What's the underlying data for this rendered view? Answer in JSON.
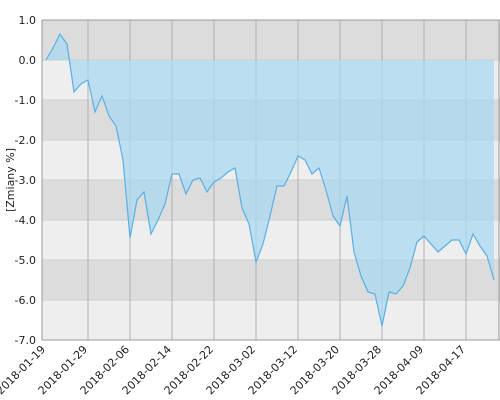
{
  "chart_data": {
    "type": "area",
    "y_label": "[Zmiany %]",
    "categories": [
      "2018-01-19",
      null,
      null,
      null,
      null,
      null,
      "2018-01-29",
      null,
      null,
      null,
      null,
      null,
      "2018-02-06",
      null,
      null,
      null,
      null,
      null,
      "2018-02-14",
      null,
      null,
      null,
      null,
      null,
      "2018-02-22",
      null,
      null,
      null,
      null,
      null,
      "2018-03-02",
      null,
      null,
      null,
      null,
      null,
      "2018-03-12",
      null,
      null,
      null,
      null,
      null,
      "2018-03-20",
      null,
      null,
      null,
      null,
      null,
      "2018-03-28",
      null,
      null,
      null,
      null,
      null,
      "2018-04-09",
      null,
      null,
      null,
      null,
      null,
      "2018-04-17",
      null,
      null,
      null,
      null
    ],
    "values": [
      0.0,
      0.3,
      0.65,
      0.4,
      -0.8,
      -0.6,
      -0.5,
      -1.3,
      -0.9,
      -1.4,
      -1.65,
      -2.5,
      -4.45,
      -3.5,
      -3.3,
      -4.35,
      -4.0,
      -3.6,
      -2.85,
      -2.85,
      -3.35,
      -3.0,
      -2.95,
      -3.3,
      -3.05,
      -2.95,
      -2.8,
      -2.7,
      -3.7,
      -4.1,
      -5.05,
      -4.6,
      -3.9,
      -3.15,
      -3.15,
      -2.8,
      -2.4,
      -2.5,
      -2.85,
      -2.7,
      -3.25,
      -3.9,
      -4.15,
      -3.4,
      -4.8,
      -5.4,
      -5.8,
      -5.85,
      -6.65,
      -5.8,
      -5.85,
      -5.65,
      -5.2,
      -4.55,
      -4.4,
      -4.6,
      -4.8,
      -4.65,
      -4.5,
      -4.5,
      -4.85,
      -4.35,
      -4.65,
      -4.9,
      -5.5
    ],
    "color": "#5aafe6",
    "fill_color": "#a9d8f2",
    "ylim": [
      -7,
      1
    ],
    "yticks": [
      {
        "value": 1,
        "label": "1.0"
      },
      {
        "value": 0,
        "label": "0.0"
      },
      {
        "value": -1,
        "label": "-1.0"
      },
      {
        "value": -2,
        "label": "-2.0"
      },
      {
        "value": -3,
        "label": "-3.0"
      },
      {
        "value": -4,
        "label": "-4.0"
      },
      {
        "value": -5,
        "label": "-5.0"
      },
      {
        "value": -6,
        "label": "-6.0"
      },
      {
        "value": -7,
        "label": "-7.0"
      }
    ],
    "band_colors": [
      "#dcdcdc",
      "#eeeeee"
    ],
    "grid": true
  }
}
